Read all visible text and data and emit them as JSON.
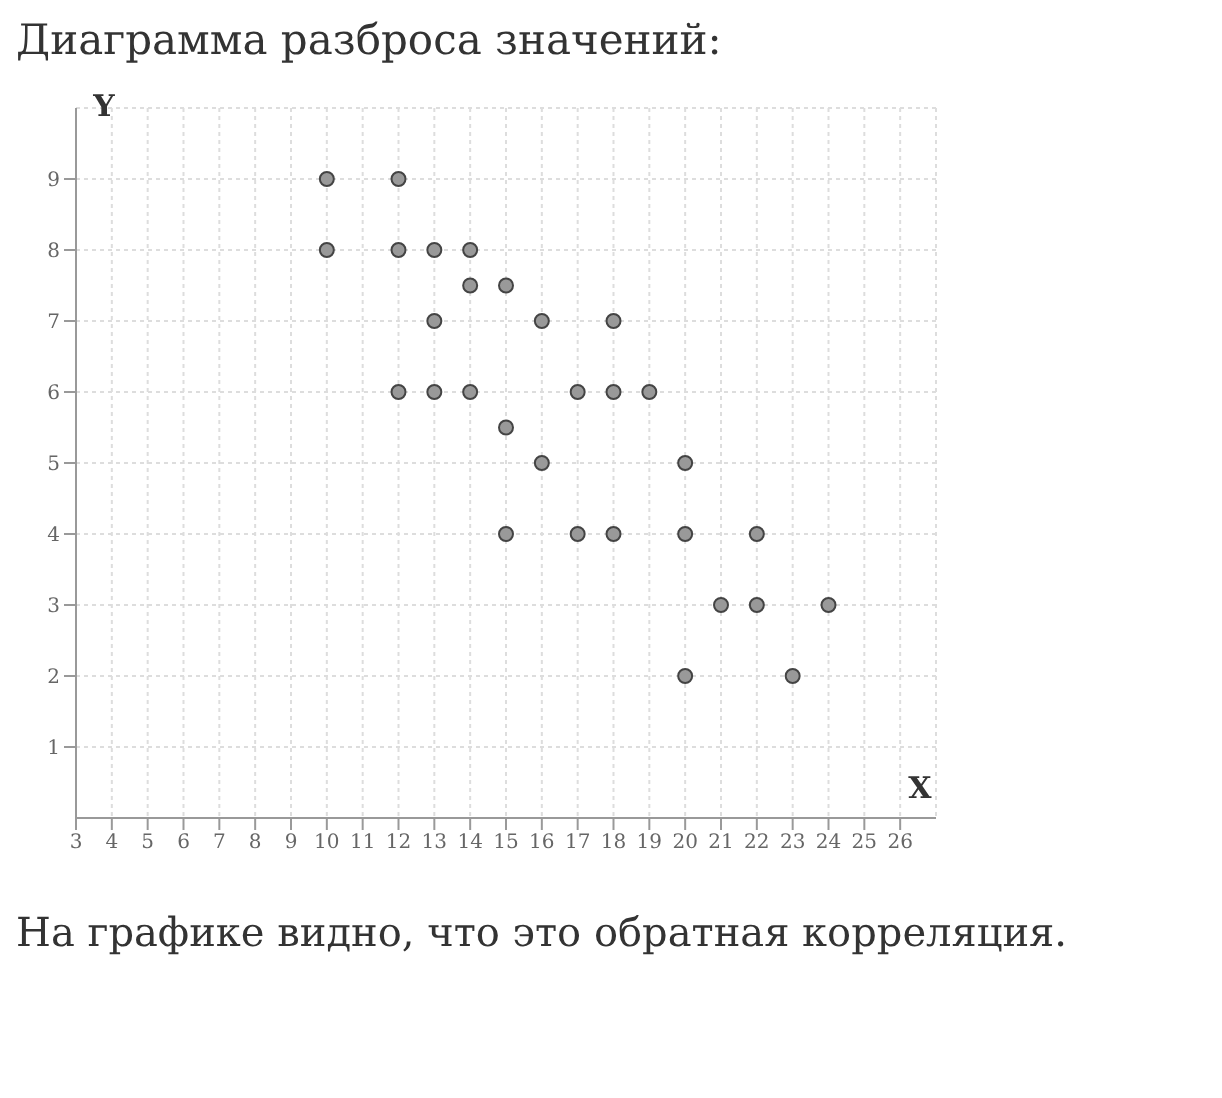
{
  "chart_data": {
    "type": "scatter",
    "title": "Диаграмма разброса значений:",
    "xlabel": "X",
    "ylabel": "Y",
    "annotations": [
      "На графике видно, что это обратная корреляция."
    ],
    "x": [
      10,
      12,
      10,
      12,
      13,
      14,
      14,
      15,
      13,
      16,
      18,
      12,
      13,
      14,
      17,
      18,
      19,
      15,
      16,
      20,
      15,
      17,
      18,
      20,
      22,
      21,
      22,
      24,
      20,
      23
    ],
    "values": [
      9,
      9,
      8,
      8,
      8,
      8,
      7.5,
      7.5,
      7,
      7,
      7,
      6,
      6,
      6,
      6,
      6,
      6,
      5.5,
      5,
      5,
      4,
      4,
      4,
      4,
      4,
      3,
      3,
      3,
      2,
      2
    ],
    "color": "#999999",
    "marker": "circle",
    "grid": true,
    "xlim": [
      3,
      27
    ],
    "xticks": [
      3,
      4,
      5,
      6,
      7,
      8,
      9,
      10,
      11,
      12,
      13,
      14,
      15,
      16,
      17,
      18,
      19,
      20,
      21,
      22,
      23,
      24,
      25,
      26
    ],
    "ylim": [
      0,
      10
    ],
    "yticks": [
      1,
      2,
      3,
      4,
      5,
      6,
      7,
      8,
      9
    ]
  }
}
